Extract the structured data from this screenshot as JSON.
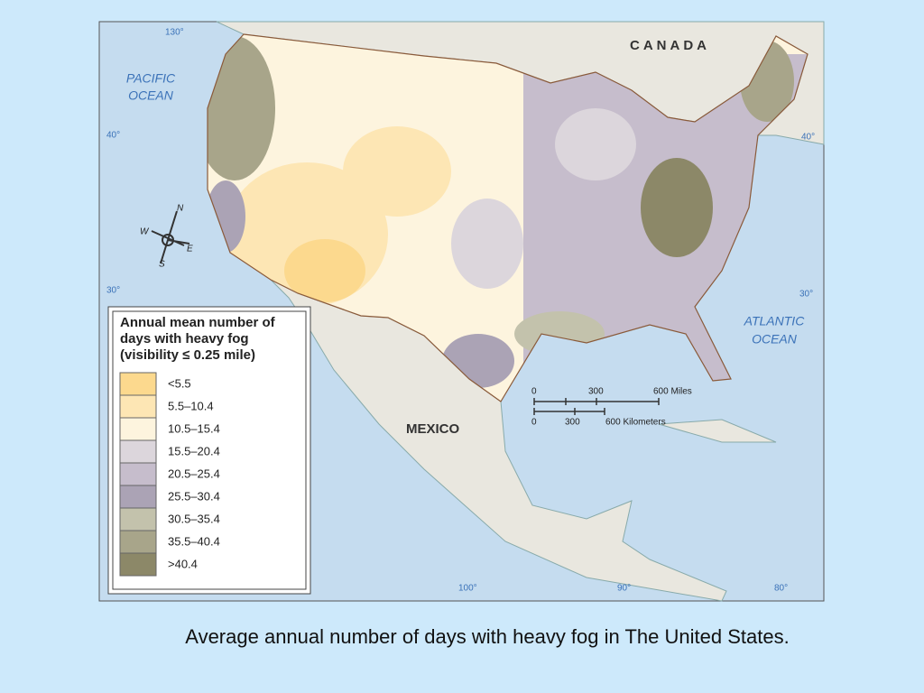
{
  "map": {
    "labels": {
      "canada": "CANADA",
      "pacific": [
        "PACIFIC",
        "OCEAN"
      ],
      "atlantic": [
        "ATLANTIC",
        "OCEAN"
      ],
      "mexico": "MEXICO"
    },
    "graticule": {
      "lon130": "130°",
      "lat40w": "40°",
      "lat30w": "30°",
      "lon100": "100°",
      "lon90": "90°",
      "lon80": "80°",
      "lat40e": "40°",
      "lat30e": "30°"
    },
    "compass": {
      "n": "N",
      "s": "S",
      "e": "E",
      "w": "W"
    },
    "scale": {
      "miles": [
        "0",
        "300",
        "600 Miles"
      ],
      "kilometers": [
        "0",
        "300",
        "600 Kilometers"
      ]
    },
    "legend": {
      "title": [
        "Annual mean number of",
        "days with heavy fog",
        "(visibility ≤ 0.25 mile)"
      ],
      "items": [
        {
          "label": "<5.5",
          "color": "#fcd98e"
        },
        {
          "label": "5.5–10.4",
          "color": "#fde6b4"
        },
        {
          "label": "10.5–15.4",
          "color": "#fdf4de"
        },
        {
          "label": "15.5–20.4",
          "color": "#dcd6dc"
        },
        {
          "label": "20.5–25.4",
          "color": "#c6bdcc"
        },
        {
          "label": "25.5–30.4",
          "color": "#aba3b5"
        },
        {
          "label": "30.5–35.4",
          "color": "#c3c2ac"
        },
        {
          "label": "35.5–40.4",
          "color": "#a8a58a"
        },
        {
          "label": ">40.4",
          "color": "#8c8868"
        }
      ]
    }
  },
  "caption": "Average annual number of days with heavy fog in  The United States."
}
